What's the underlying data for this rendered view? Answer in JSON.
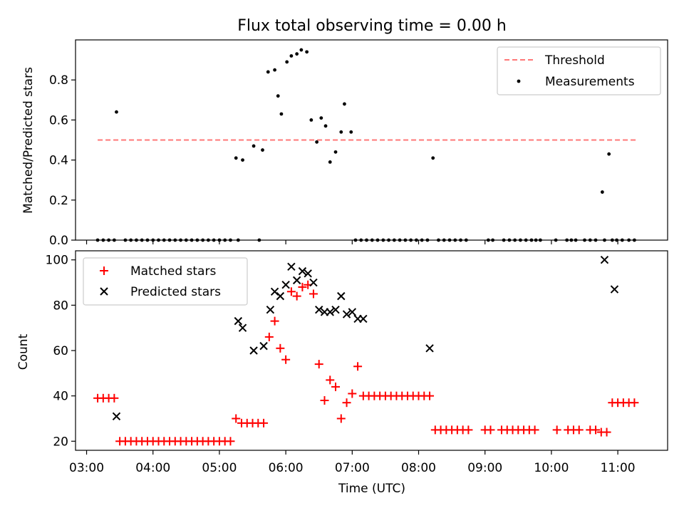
{
  "chart_data": [
    {
      "type": "scatter",
      "title": "Flux total observing time = 0.00 h",
      "xlabel": "",
      "ylabel": "Matched/Predicted stars",
      "xlim": [
        "02:50",
        "11:45"
      ],
      "ylim": [
        0,
        1.0
      ],
      "yticks": [
        0.0,
        0.2,
        0.4,
        0.6,
        0.8
      ],
      "ytick_labels": [
        "0.0",
        "0.2",
        "0.4",
        "0.6",
        "0.8"
      ],
      "legend_position": "upper right",
      "series": [
        {
          "name": "Threshold",
          "kind": "line",
          "style": "dashed",
          "color": "#ff7777",
          "x": [
            "03:10",
            "11:17"
          ],
          "y": [
            0.5,
            0.5
          ]
        },
        {
          "name": "Measurements",
          "kind": "scatter",
          "color": "#000000",
          "x": [
            "03:10",
            "03:15",
            "03:20",
            "03:25",
            "03:27",
            "03:35",
            "03:40",
            "03:45",
            "03:50",
            "03:55",
            "04:00",
            "04:05",
            "04:10",
            "04:15",
            "04:20",
            "04:25",
            "04:30",
            "04:35",
            "04:40",
            "04:45",
            "04:50",
            "04:55",
            "05:00",
            "05:05",
            "05:10",
            "05:15",
            "05:17",
            "05:21",
            "05:31",
            "05:36",
            "05:39",
            "05:44",
            "05:50",
            "05:53",
            "05:56",
            "06:01",
            "06:05",
            "06:10",
            "06:14",
            "06:19",
            "06:23",
            "06:28",
            "06:32",
            "06:36",
            "06:40",
            "06:45",
            "06:50",
            "06:53",
            "06:59",
            "07:03",
            "07:08",
            "07:13",
            "07:18",
            "07:23",
            "07:28",
            "07:33",
            "07:38",
            "07:43",
            "07:48",
            "07:53",
            "07:58",
            "08:03",
            "08:08",
            "08:13",
            "08:18",
            "08:23",
            "08:28",
            "08:33",
            "08:38",
            "08:43",
            "09:03",
            "09:07",
            "09:17",
            "09:22",
            "09:27",
            "09:32",
            "09:37",
            "09:42",
            "09:46",
            "09:50",
            "10:04",
            "10:14",
            "10:18",
            "10:22",
            "10:30",
            "10:35",
            "10:40",
            "10:46",
            "10:48",
            "10:52",
            "10:55",
            "10:59",
            "11:04",
            "11:10",
            "11:15"
          ],
          "y": [
            0,
            0,
            0,
            0,
            0.64,
            0,
            0,
            0,
            0,
            0,
            0,
            0,
            0,
            0,
            0,
            0,
            0,
            0,
            0,
            0,
            0,
            0,
            0,
            0,
            0,
            0.41,
            0,
            0.4,
            0.47,
            0,
            0.45,
            0.84,
            0.85,
            0.72,
            0.63,
            0.89,
            0.92,
            0.93,
            0.95,
            0.94,
            0.6,
            0.49,
            0.61,
            0.57,
            0.39,
            0.44,
            0.54,
            0.68,
            0.54,
            0,
            0,
            0,
            0,
            0,
            0,
            0,
            0,
            0,
            0,
            0,
            0,
            0,
            0,
            0.41,
            0,
            0,
            0,
            0,
            0,
            0,
            0,
            0,
            0,
            0,
            0,
            0,
            0,
            0,
            0,
            0,
            0,
            0,
            0,
            0,
            0,
            0,
            0,
            0.24,
            0,
            0.43,
            0,
            0,
            0,
            0,
            0
          ]
        }
      ]
    },
    {
      "type": "scatter",
      "title": "",
      "xlabel": "Time (UTC)",
      "ylabel": "Count",
      "xlim": [
        "02:50",
        "11:45"
      ],
      "ylim": [
        16,
        104
      ],
      "yticks": [
        20,
        40,
        60,
        80,
        100
      ],
      "ytick_labels": [
        "20",
        "40",
        "60",
        "80",
        "100"
      ],
      "xticks": [
        "03:00",
        "04:00",
        "05:00",
        "06:00",
        "07:00",
        "08:00",
        "09:00",
        "10:00",
        "11:00"
      ],
      "legend_position": "upper left",
      "series": [
        {
          "name": "Matched stars",
          "marker": "plus",
          "color": "#ff0000",
          "x": [
            "03:10",
            "03:15",
            "03:20",
            "03:25",
            "03:30",
            "03:35",
            "03:40",
            "03:45",
            "03:50",
            "03:55",
            "04:00",
            "04:05",
            "04:10",
            "04:15",
            "04:20",
            "04:25",
            "04:30",
            "04:35",
            "04:40",
            "04:45",
            "04:50",
            "04:55",
            "05:00",
            "05:05",
            "05:10",
            "05:15",
            "05:20",
            "05:25",
            "05:30",
            "05:35",
            "05:40",
            "05:45",
            "05:50",
            "05:55",
            "06:00",
            "06:05",
            "06:10",
            "06:15",
            "06:20",
            "06:25",
            "06:30",
            "06:35",
            "06:40",
            "06:45",
            "06:50",
            "06:55",
            "07:00",
            "07:05",
            "07:10",
            "07:15",
            "07:20",
            "07:25",
            "07:30",
            "07:35",
            "07:40",
            "07:45",
            "07:50",
            "07:55",
            "08:00",
            "08:05",
            "08:10",
            "08:15",
            "08:20",
            "08:25",
            "08:30",
            "08:35",
            "08:40",
            "08:45",
            "09:00",
            "09:05",
            "09:15",
            "09:20",
            "09:25",
            "09:30",
            "09:35",
            "09:40",
            "09:45",
            "10:05",
            "10:15",
            "10:20",
            "10:25",
            "10:35",
            "10:40",
            "10:45",
            "10:50",
            "10:55",
            "11:00",
            "11:05",
            "11:10",
            "11:15"
          ],
          "y": [
            39,
            39,
            39,
            39,
            20,
            20,
            20,
            20,
            20,
            20,
            20,
            20,
            20,
            20,
            20,
            20,
            20,
            20,
            20,
            20,
            20,
            20,
            20,
            20,
            20,
            30,
            28,
            28,
            28,
            28,
            28,
            66,
            73,
            61,
            56,
            86,
            84,
            88,
            89,
            85,
            54,
            38,
            47,
            44,
            30,
            37,
            41,
            53,
            40,
            40,
            40,
            40,
            40,
            40,
            40,
            40,
            40,
            40,
            40,
            40,
            40,
            25,
            25,
            25,
            25,
            25,
            25,
            25,
            25,
            25,
            25,
            25,
            25,
            25,
            25,
            25,
            25,
            25,
            25,
            25,
            25,
            25,
            25,
            24,
            24,
            37,
            37,
            37,
            37,
            37
          ]
        },
        {
          "name": "Predicted stars",
          "marker": "x",
          "color": "#000000",
          "x": [
            "03:27",
            "05:17",
            "05:21",
            "05:31",
            "05:40",
            "05:46",
            "05:50",
            "05:55",
            "06:00",
            "06:05",
            "06:10",
            "06:15",
            "06:20",
            "06:25",
            "06:30",
            "06:35",
            "06:40",
            "06:45",
            "06:50",
            "06:55",
            "07:00",
            "07:05",
            "07:10",
            "08:10",
            "10:48",
            "10:57"
          ],
          "y": [
            31,
            73,
            70,
            60,
            62,
            78,
            86,
            84,
            89,
            97,
            91,
            95,
            94,
            90,
            78,
            77,
            77,
            78,
            84,
            76,
            77,
            74,
            74,
            61,
            100,
            87
          ]
        }
      ]
    }
  ]
}
